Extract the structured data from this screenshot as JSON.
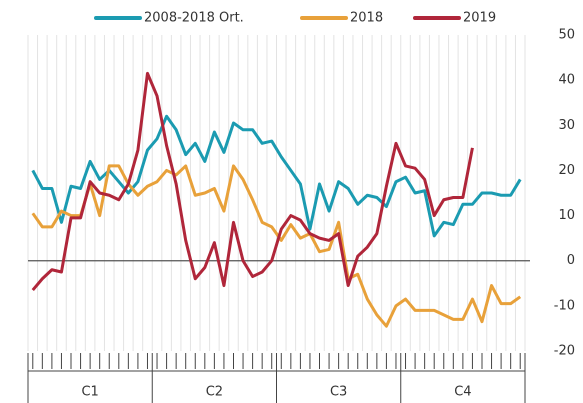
{
  "chart_data": {
    "type": "line",
    "legend": "top",
    "categories": [
      null,
      null,
      null,
      null,
      null,
      null,
      null,
      null,
      null,
      null,
      null,
      null,
      null,
      null,
      null,
      null,
      null,
      null,
      null,
      null,
      null,
      null,
      null,
      null,
      null,
      null,
      null,
      null,
      null,
      null,
      null,
      null,
      null,
      null,
      null,
      null,
      null,
      null,
      null,
      null,
      null,
      null,
      null,
      null,
      null,
      null,
      null,
      null,
      null,
      null,
      null,
      null
    ],
    "groups": [
      "C1",
      "C2",
      "C3",
      "C4"
    ],
    "ylim": [
      -20,
      50
    ],
    "yticks": [
      50,
      40,
      30,
      20,
      10,
      0,
      -10,
      -20
    ],
    "grid": true,
    "series": [
      {
        "name": "2008-2018 Ort.",
        "color": "#1b9bb1",
        "values": [
          20,
          16,
          16,
          8.5,
          16.5,
          16,
          22,
          18,
          20,
          17.5,
          15,
          17.5,
          24.5,
          27,
          32,
          29,
          23.5,
          26,
          22,
          28.5,
          24,
          30.5,
          29,
          29,
          26,
          26.5,
          23,
          20,
          17,
          7,
          17,
          11,
          17.5,
          16,
          12.5,
          14.5,
          14,
          12,
          17.5,
          18.5,
          15,
          15.5,
          5.5,
          8.5,
          8,
          12.5,
          12.5,
          15,
          15,
          14.5,
          14.5,
          18
        ]
      },
      {
        "name": "2018",
        "color": "#e8a13a",
        "values": [
          10.5,
          7.5,
          7.5,
          11,
          10,
          10,
          17,
          10,
          21,
          21,
          17,
          14.5,
          16.5,
          17.5,
          20,
          19,
          21,
          14.5,
          15,
          16,
          11,
          21,
          18,
          13.5,
          8.5,
          7.5,
          4.5,
          8,
          5,
          6,
          2,
          2.5,
          8.5,
          -4,
          -3,
          -8.5,
          -12,
          -14.5,
          -10,
          -8.5,
          -11,
          -11,
          -11,
          -12,
          -13,
          -13,
          -8.5,
          -13.5,
          -5.5,
          -9.5,
          -9.5,
          -8
        ]
      },
      {
        "name": "2019",
        "color": "#b0263a",
        "values": [
          -6.5,
          -4,
          -2,
          -2.5,
          9.5,
          9.5,
          17.5,
          15,
          14.5,
          13.5,
          17,
          24.5,
          41.5,
          36.5,
          25.5,
          17,
          4.5,
          -4,
          -1.5,
          4,
          -5.5,
          8.5,
          0,
          -3.5,
          -2.5,
          0,
          7,
          10,
          9,
          6,
          5,
          4.5,
          6,
          -5.5,
          1,
          3,
          6,
          16.5,
          26,
          21,
          20.5,
          18,
          10,
          13.5,
          14,
          14,
          25,
          null,
          null,
          null,
          null,
          null
        ]
      }
    ]
  }
}
